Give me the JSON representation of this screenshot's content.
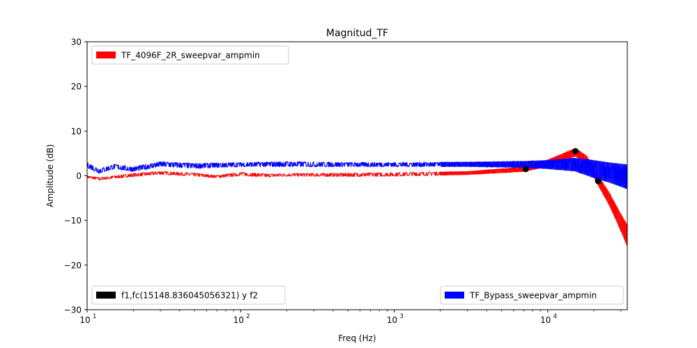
{
  "chart_data": {
    "type": "line",
    "title": "Magnitud_TF",
    "xlabel": "Freq (Hz)",
    "ylabel": "Amplitude (dB)",
    "xscale": "log",
    "xlim": [
      10,
      33000
    ],
    "ylim": [
      -30,
      30
    ],
    "grid": false,
    "x_ticks": [
      10,
      100,
      1000,
      10000
    ],
    "x_tick_labels": [
      "10",
      "10",
      "10",
      "10"
    ],
    "x_tick_exponents": [
      "1",
      "2",
      "3",
      "4"
    ],
    "y_ticks": [
      -30,
      -20,
      -10,
      0,
      10,
      20,
      30
    ],
    "y_tick_labels": [
      "−30",
      "−20",
      "−10",
      "0",
      "10",
      "20",
      "30"
    ],
    "series": [
      {
        "name": "TF_4096F_2R_sweepvar_ampmin",
        "color": "#ff0000",
        "legend_loc": "upper left",
        "band": [
          {
            "x": 10,
            "lo": -0.5,
            "hi": 0.0
          },
          {
            "x": 12,
            "lo": -1.0,
            "hi": -0.4
          },
          {
            "x": 15,
            "lo": -0.6,
            "hi": 0.0
          },
          {
            "x": 20,
            "lo": -0.2,
            "hi": 0.5
          },
          {
            "x": 30,
            "lo": 0.3,
            "hi": 1.0
          },
          {
            "x": 50,
            "lo": -0.1,
            "hi": 0.6
          },
          {
            "x": 70,
            "lo": -0.5,
            "hi": 0.1
          },
          {
            "x": 100,
            "lo": 0.0,
            "hi": 0.8
          },
          {
            "x": 150,
            "lo": -0.3,
            "hi": 0.4
          },
          {
            "x": 200,
            "lo": -0.1,
            "hi": 0.5
          },
          {
            "x": 500,
            "lo": -0.2,
            "hi": 0.6
          },
          {
            "x": 1000,
            "lo": -0.1,
            "hi": 0.7
          },
          {
            "x": 3000,
            "lo": 0.2,
            "hi": 1.0
          },
          {
            "x": 7000,
            "lo": 0.9,
            "hi": 2.0
          },
          {
            "x": 10000,
            "lo": 2.0,
            "hi": 3.6
          },
          {
            "x": 15148.836,
            "lo": 4.3,
            "hi": 6.2
          },
          {
            "x": 18000,
            "lo": 2.5,
            "hi": 4.5
          },
          {
            "x": 21000,
            "lo": -1.8,
            "hi": 0.5
          },
          {
            "x": 25000,
            "lo": -6.5,
            "hi": -3.5
          },
          {
            "x": 30000,
            "lo": -12.5,
            "hi": -8.5
          },
          {
            "x": 33000,
            "lo": -16.0,
            "hi": -11.0
          }
        ]
      },
      {
        "name": "TF_Bypass_sweepvar_ampmin",
        "color": "#0000ff",
        "legend_loc": "lower right",
        "band": [
          {
            "x": 10,
            "lo": 1.8,
            "hi": 3.0
          },
          {
            "x": 12,
            "lo": 0.5,
            "hi": 1.6
          },
          {
            "x": 15,
            "lo": 1.5,
            "hi": 2.6
          },
          {
            "x": 20,
            "lo": 0.9,
            "hi": 2.0
          },
          {
            "x": 30,
            "lo": 2.0,
            "hi": 3.2
          },
          {
            "x": 50,
            "lo": 1.6,
            "hi": 2.8
          },
          {
            "x": 100,
            "lo": 2.0,
            "hi": 3.0
          },
          {
            "x": 200,
            "lo": 2.0,
            "hi": 3.2
          },
          {
            "x": 500,
            "lo": 2.0,
            "hi": 3.0
          },
          {
            "x": 1000,
            "lo": 2.0,
            "hi": 3.0
          },
          {
            "x": 3000,
            "lo": 2.0,
            "hi": 3.1
          },
          {
            "x": 7000,
            "lo": 1.8,
            "hi": 3.3
          },
          {
            "x": 10000,
            "lo": 1.5,
            "hi": 3.5
          },
          {
            "x": 15000,
            "lo": 1.0,
            "hi": 4.0
          },
          {
            "x": 20000,
            "lo": -0.5,
            "hi": 3.5
          },
          {
            "x": 25000,
            "lo": -1.5,
            "hi": 3.0
          },
          {
            "x": 33000,
            "lo": -3.0,
            "hi": 2.5
          }
        ]
      },
      {
        "name": "f1,fc(15148.836045056321) y f2",
        "color": "#000000",
        "legend_loc": "lower left",
        "points": [
          {
            "x": 7200,
            "y": 1.5
          },
          {
            "x": 15148.836045056321,
            "y": 5.5
          },
          {
            "x": 21300,
            "y": -1.2
          }
        ]
      }
    ]
  }
}
